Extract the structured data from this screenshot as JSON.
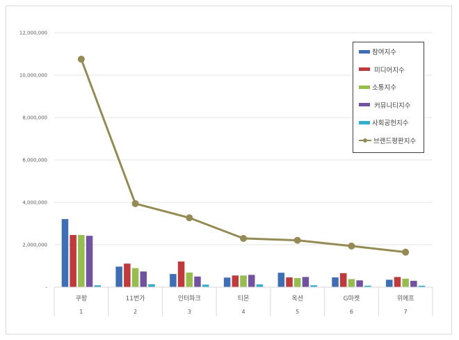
{
  "chart_data": {
    "type": "bar+line",
    "title": "",
    "xlabel": "",
    "ylabel": "",
    "ylim": [
      0,
      12000000
    ],
    "y_ticks": [
      "-",
      "2,000,000",
      "4,000,000",
      "6,000,000",
      "8,000,000",
      "10,000,000",
      "12,000,000"
    ],
    "y_tick_values": [
      0,
      2000000,
      4000000,
      6000000,
      8000000,
      10000000,
      12000000
    ],
    "grid": true,
    "legend_position": "upper right (inside plot)",
    "categories": [
      "쿠팡",
      "11번가",
      "인터파크",
      "티몬",
      "옥션",
      "G마켓",
      "위메프"
    ],
    "category_ranks": [
      "1",
      "2",
      "3",
      "4",
      "5",
      "6",
      "7"
    ],
    "series": [
      {
        "name": "참여지수",
        "type": "bar",
        "color": "#3E6EB5",
        "values": [
          3210000,
          970000,
          620000,
          450000,
          680000,
          460000,
          350000
        ]
      },
      {
        "name": "미디어지수",
        "type": "bar",
        "color": "#C0393B",
        "values": [
          2460000,
          1110000,
          1210000,
          550000,
          460000,
          660000,
          480000
        ]
      },
      {
        "name": "소통지수",
        "type": "bar",
        "color": "#96BE4E",
        "values": [
          2460000,
          900000,
          690000,
          550000,
          430000,
          380000,
          400000
        ]
      },
      {
        "name": "커뮤니티지수",
        "type": "bar",
        "color": "#7052A0",
        "values": [
          2420000,
          740000,
          500000,
          580000,
          480000,
          320000,
          300000
        ]
      },
      {
        "name": "사회공헌지수",
        "type": "bar",
        "color": "#34AECB",
        "values": [
          90000,
          140000,
          120000,
          130000,
          90000,
          70000,
          70000
        ]
      },
      {
        "name": "브랜드평판지수",
        "type": "line",
        "color": "#948A54",
        "values": [
          10750000,
          3940000,
          3270000,
          2300000,
          2210000,
          1940000,
          1650000
        ]
      }
    ]
  },
  "legend": {
    "items": [
      {
        "label": "참여지수",
        "kind": "bar",
        "color": "#3E6EB5"
      },
      {
        "label": " 미디어지수",
        "kind": "bar",
        "color": "#C0393B"
      },
      {
        "label": "소통지수",
        "kind": "bar",
        "color": "#96BE4E"
      },
      {
        "label": " 커뮤니티지수",
        "kind": "bar",
        "color": "#7052A0"
      },
      {
        "label": "사회공헌지수",
        "kind": "bar",
        "color": "#34AECB"
      },
      {
        "label": "브랜드평판지수",
        "kind": "line",
        "color": "#948A54"
      }
    ]
  }
}
